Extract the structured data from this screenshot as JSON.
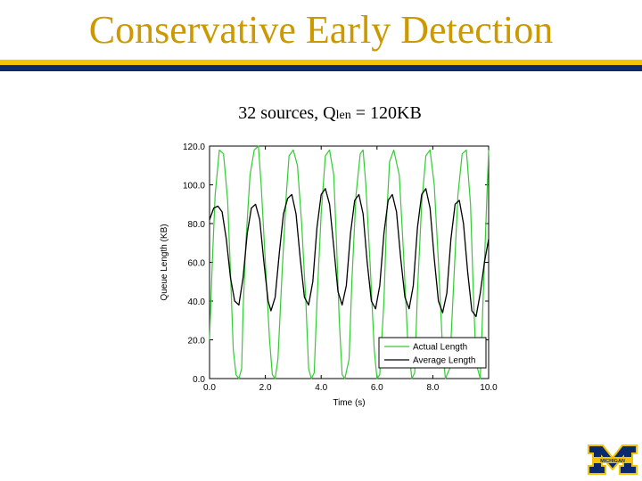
{
  "slide": {
    "title": "Conservative Early Detection",
    "subtitle_prefix": "32 sources, Q",
    "subtitle_sub": "len",
    "subtitle_suffix": " = 120KB",
    "logo_text": "MICHIGAN"
  },
  "colors": {
    "title": "#cc9900",
    "rule_gold": "#f2c400",
    "rule_blue": "#0b2a6b",
    "actual": "#33cc33",
    "average": "#000000"
  },
  "chart_data": {
    "type": "line",
    "xlabel": "Time (s)",
    "ylabel": "Queue Length (KB)",
    "xlim": [
      0,
      10
    ],
    "ylim": [
      0,
      120
    ],
    "x_ticks": [
      "0.0",
      "2.0",
      "4.0",
      "6.0",
      "8.0",
      "10.0"
    ],
    "y_ticks": [
      "0.0",
      "20.0",
      "40.0",
      "60.0",
      "80.0",
      "100.0",
      "120.0"
    ],
    "legend_position": "bottom-right",
    "series": [
      {
        "name": "Actual Length",
        "color": "#33cc33",
        "x": [
          0.0,
          0.1,
          0.2,
          0.35,
          0.5,
          0.65,
          0.75,
          0.85,
          0.95,
          1.05,
          1.15,
          1.2,
          1.3,
          1.45,
          1.6,
          1.75,
          1.85,
          2.0,
          2.15,
          2.25,
          2.35,
          2.45,
          2.6,
          2.75,
          2.85,
          3.0,
          3.15,
          3.3,
          3.45,
          3.55,
          3.65,
          3.75,
          3.85,
          4.0,
          4.15,
          4.3,
          4.45,
          4.55,
          4.65,
          4.75,
          4.85,
          5.0,
          5.1,
          5.25,
          5.4,
          5.5,
          5.6,
          5.75,
          5.9,
          6.0,
          6.1,
          6.25,
          6.35,
          6.45,
          6.6,
          6.8,
          6.95,
          7.1,
          7.25,
          7.35,
          7.45,
          7.6,
          7.75,
          7.9,
          8.05,
          8.2,
          8.35,
          8.45,
          8.6,
          8.75,
          8.9,
          9.05,
          9.2,
          9.35,
          9.45,
          9.55,
          9.7,
          9.85,
          10.0
        ],
        "y": [
          20,
          60,
          95,
          118,
          116,
          92,
          55,
          15,
          2,
          0,
          5,
          35,
          70,
          105,
          118,
          120,
          100,
          60,
          20,
          2,
          0,
          10,
          55,
          95,
          115,
          118,
          110,
          80,
          40,
          5,
          0,
          3,
          40,
          85,
          115,
          118,
          105,
          70,
          30,
          2,
          0,
          10,
          50,
          95,
          116,
          118,
          100,
          60,
          15,
          0,
          2,
          40,
          85,
          112,
          118,
          105,
          65,
          20,
          0,
          3,
          45,
          90,
          115,
          118,
          100,
          60,
          15,
          0,
          5,
          50,
          95,
          116,
          118,
          90,
          45,
          8,
          0,
          60,
          118
        ]
      },
      {
        "name": "Average Length",
        "color": "#000000",
        "x": [
          0.0,
          0.15,
          0.3,
          0.45,
          0.6,
          0.75,
          0.9,
          1.05,
          1.2,
          1.35,
          1.5,
          1.65,
          1.8,
          1.95,
          2.1,
          2.2,
          2.35,
          2.5,
          2.65,
          2.8,
          2.95,
          3.1,
          3.25,
          3.4,
          3.55,
          3.7,
          3.85,
          4.0,
          4.15,
          4.3,
          4.45,
          4.6,
          4.75,
          4.9,
          5.05,
          5.2,
          5.35,
          5.5,
          5.65,
          5.8,
          5.95,
          6.1,
          6.25,
          6.4,
          6.55,
          6.7,
          6.85,
          7.0,
          7.15,
          7.3,
          7.45,
          7.6,
          7.75,
          7.9,
          8.05,
          8.2,
          8.35,
          8.5,
          8.65,
          8.8,
          8.95,
          9.1,
          9.25,
          9.4,
          9.55,
          9.7,
          9.85,
          10.0
        ],
        "y": [
          82,
          88,
          89,
          86,
          72,
          52,
          40,
          38,
          52,
          75,
          88,
          90,
          82,
          60,
          40,
          35,
          42,
          65,
          85,
          93,
          95,
          85,
          62,
          42,
          38,
          50,
          78,
          95,
          98,
          90,
          68,
          45,
          38,
          48,
          75,
          92,
          95,
          85,
          60,
          40,
          36,
          48,
          75,
          92,
          95,
          86,
          62,
          42,
          36,
          48,
          78,
          95,
          98,
          88,
          62,
          40,
          34,
          44,
          72,
          90,
          92,
          80,
          55,
          35,
          32,
          44,
          60,
          72
        ]
      }
    ]
  }
}
